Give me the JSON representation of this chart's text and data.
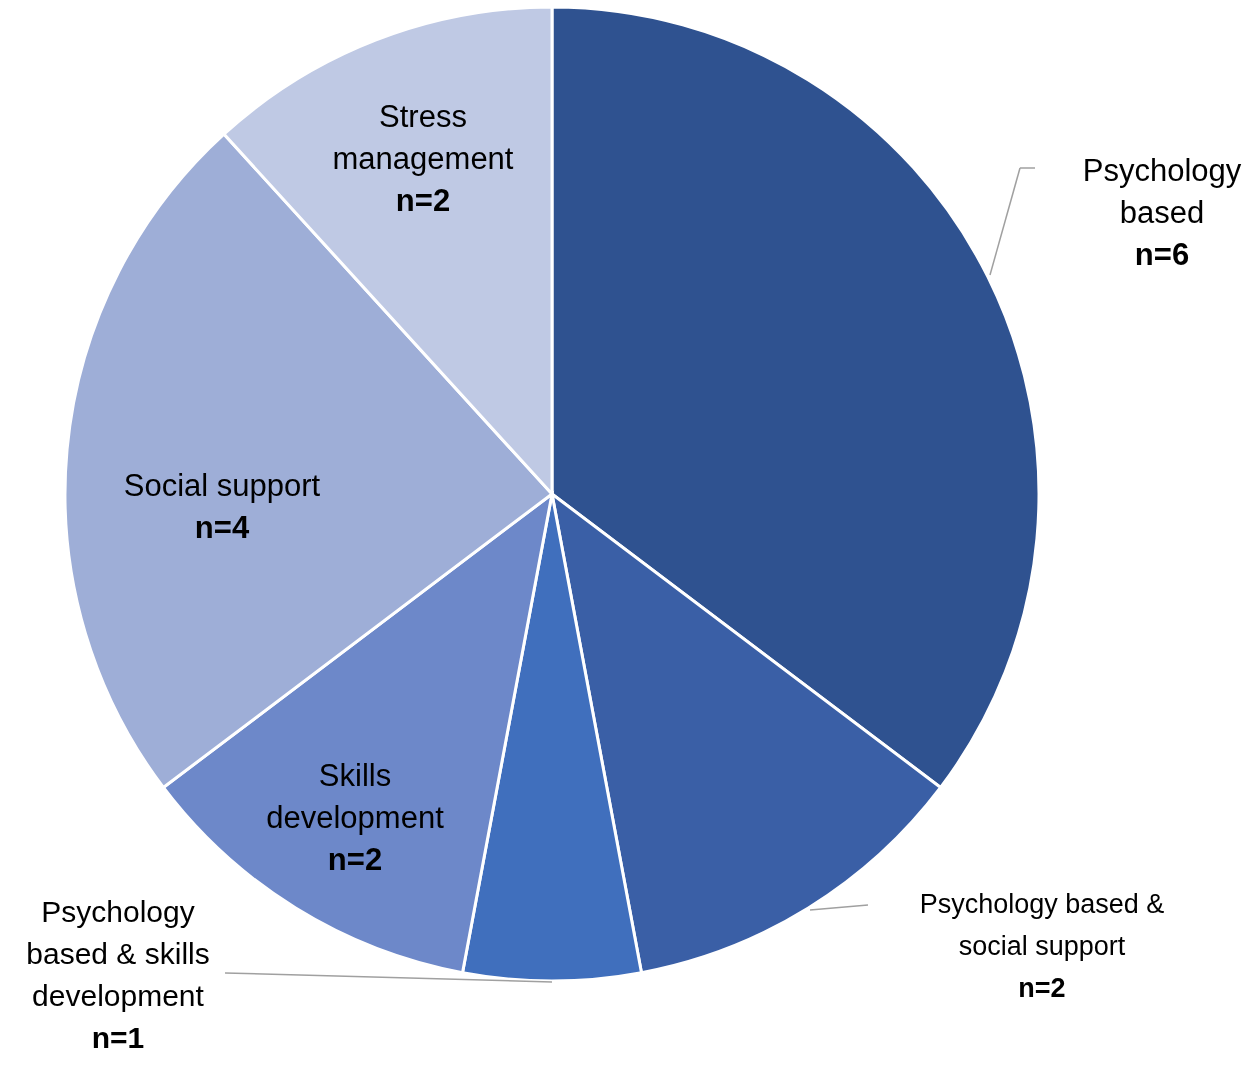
{
  "chart_data": {
    "type": "pie",
    "categories": [
      "Psychology based",
      "Psychology based & social support",
      "Psychology based & skills development",
      "Skills development",
      "Social support",
      "Stress management"
    ],
    "values": [
      6,
      2,
      1,
      2,
      4,
      2
    ],
    "value_labels": [
      "n=6",
      "n=2",
      "n=1",
      "n=2",
      "n=4",
      "n=2"
    ],
    "colors": [
      "#2f5290",
      "#3a5fa6",
      "#406fbd",
      "#6d88c9",
      "#9eaed7",
      "#bfc9e4"
    ]
  }
}
